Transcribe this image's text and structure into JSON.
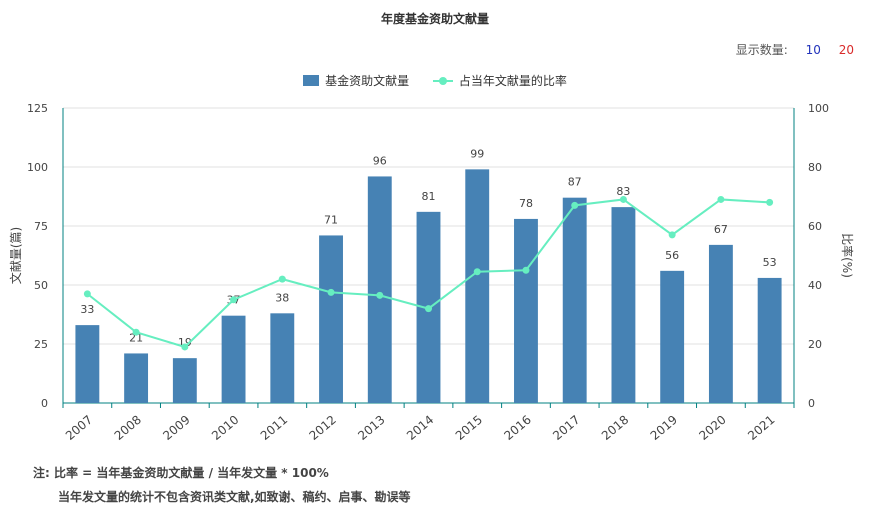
{
  "title": "年度基金资助文献量",
  "display_count": {
    "label": "显示数量:",
    "options": [
      "10",
      "20"
    ],
    "selected": "20"
  },
  "legend": {
    "bar": "基金资助文献量",
    "line": "占当年文献量的比率"
  },
  "colors": {
    "bar": "#4682b4",
    "line": "#66eec0",
    "axis": "#008080",
    "grid": "#e0e0e0"
  },
  "notes": {
    "line1": "注:  比率 = 当年基金资助文献量 / 当年发文量 * 100%",
    "line2": "当年发文量的统计不包含资讯类文献,如致谢、稿约、启事、勘误等"
  },
  "chart_data": {
    "type": "bar",
    "categories": [
      "2007",
      "2008",
      "2009",
      "2010",
      "2011",
      "2012",
      "2013",
      "2014",
      "2015",
      "2016",
      "2017",
      "2018",
      "2019",
      "2020",
      "2021"
    ],
    "series": [
      {
        "name": "基金资助文献量",
        "type": "bar",
        "axis": "left",
        "values": [
          33,
          21,
          19,
          37,
          38,
          71,
          96,
          81,
          99,
          78,
          87,
          83,
          56,
          67,
          53
        ]
      },
      {
        "name": "占当年文献量的比率",
        "type": "line",
        "axis": "right",
        "values": [
          37,
          24,
          19,
          35,
          42,
          37.5,
          36.5,
          32,
          44.5,
          45,
          67,
          69,
          57,
          69,
          68
        ]
      }
    ],
    "ylabel_left": "文献量(篇)",
    "ylabel_right": "比率(%)",
    "ylim_left": [
      0,
      125
    ],
    "yticks_left": [
      0,
      25,
      50,
      75,
      100,
      125
    ],
    "ylim_right": [
      0,
      100
    ],
    "yticks_right": [
      0,
      20,
      40,
      60,
      80,
      100
    ],
    "grid": true,
    "legend_position": "top-center"
  }
}
